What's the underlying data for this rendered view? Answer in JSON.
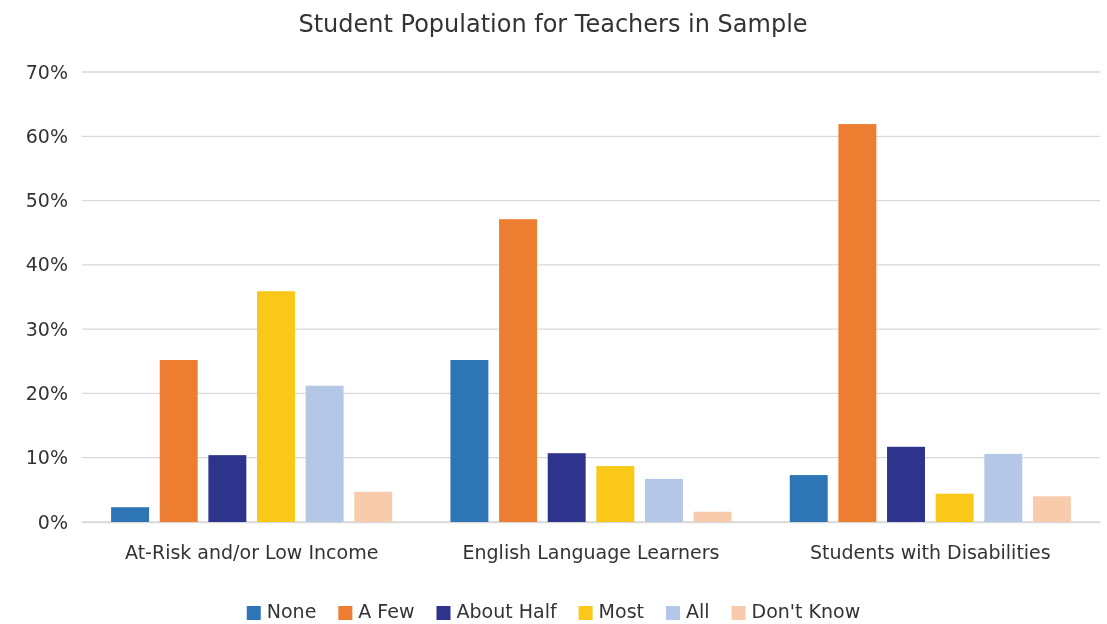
{
  "chart_data": {
    "type": "bar",
    "title": "Student Population for Teachers in Sample",
    "categories": [
      "At-Risk and/or Low Income",
      "English Language Learners",
      "Students with Disabilities"
    ],
    "series": [
      {
        "name": "None",
        "color": "#2e75b6",
        "values": [
          2.3,
          25.2,
          7.3
        ]
      },
      {
        "name": "A Few",
        "color": "#ed7d31",
        "values": [
          25.2,
          47.1,
          61.9
        ]
      },
      {
        "name": "About Half",
        "color": "#2e338c",
        "values": [
          10.4,
          10.7,
          11.7
        ]
      },
      {
        "name": "Most",
        "color": "#f9c818",
        "values": [
          35.9,
          8.7,
          4.4
        ]
      },
      {
        "name": "All",
        "color": "#b4c7e7",
        "values": [
          21.2,
          6.7,
          10.6
        ]
      },
      {
        "name": "Don't Know",
        "color": "#f8cbad",
        "values": [
          4.7,
          1.6,
          4.0
        ]
      }
    ],
    "ylim": [
      0,
      70
    ],
    "yticks": [
      {
        "value": 0,
        "label": "0%"
      },
      {
        "value": 10,
        "label": "10%"
      },
      {
        "value": 20,
        "label": "20%"
      },
      {
        "value": 30,
        "label": "30%"
      },
      {
        "value": 40,
        "label": "40%"
      },
      {
        "value": 50,
        "label": "50%"
      },
      {
        "value": 60,
        "label": "60%"
      },
      {
        "value": 70,
        "label": "70%"
      }
    ],
    "grid": "y",
    "legend": "bottom"
  }
}
